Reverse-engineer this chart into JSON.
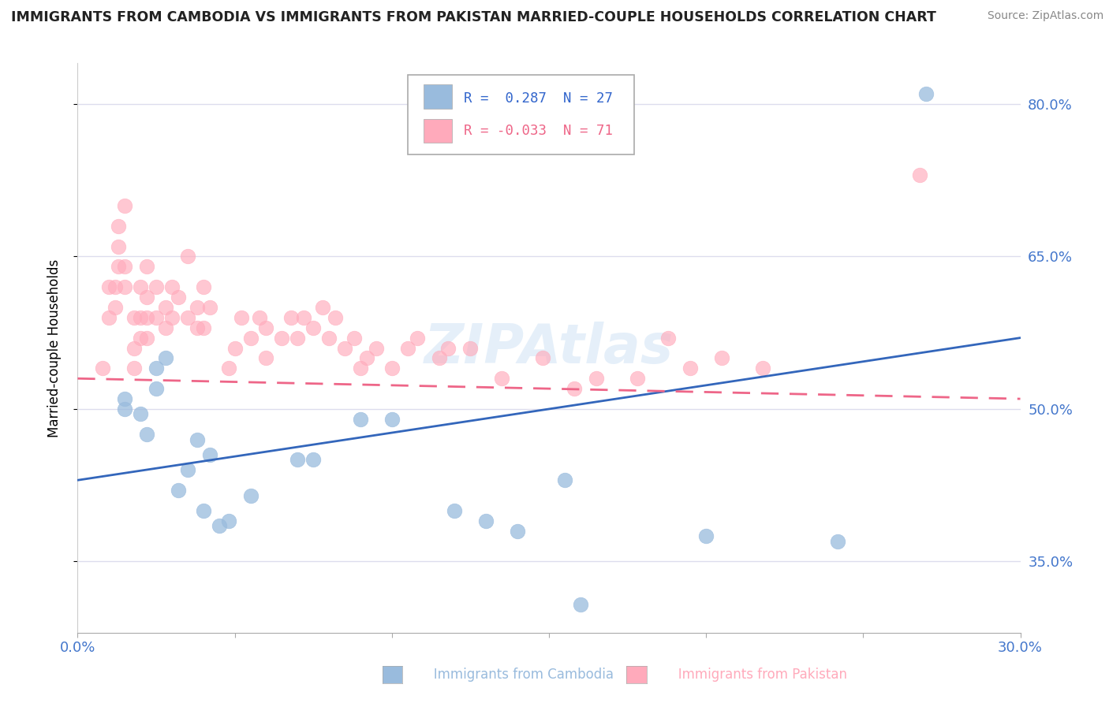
{
  "title": "IMMIGRANTS FROM CAMBODIA VS IMMIGRANTS FROM PAKISTAN MARRIED-COUPLE HOUSEHOLDS CORRELATION CHART",
  "source": "Source: ZipAtlas.com",
  "xlabel_cambodia": "Immigrants from Cambodia",
  "xlabel_pakistan": "Immigrants from Pakistan",
  "ylabel": "Married-couple Households",
  "xlim": [
    0.0,
    0.3
  ],
  "ylim": [
    0.28,
    0.84
  ],
  "yticks": [
    0.35,
    0.5,
    0.65,
    0.8
  ],
  "ytick_labels": [
    "35.0%",
    "50.0%",
    "65.0%",
    "80.0%"
  ],
  "cambodia_color": "#99bbdd",
  "pakistan_color": "#ffaabb",
  "cambodia_line_color": "#3366bb",
  "pakistan_line_color": "#ee6688",
  "background_color": "#ffffff",
  "grid_color": "#ddddee",
  "watermark": "ZIPAtlas",
  "cambodia_x": [
    0.015,
    0.015,
    0.02,
    0.022,
    0.025,
    0.025,
    0.028,
    0.032,
    0.035,
    0.038,
    0.04,
    0.042,
    0.045,
    0.048,
    0.055,
    0.07,
    0.075,
    0.09,
    0.1,
    0.12,
    0.13,
    0.14,
    0.155,
    0.16,
    0.2,
    0.242,
    0.27
  ],
  "cambodia_y": [
    0.5,
    0.51,
    0.495,
    0.475,
    0.52,
    0.54,
    0.55,
    0.42,
    0.44,
    0.47,
    0.4,
    0.455,
    0.385,
    0.39,
    0.415,
    0.45,
    0.45,
    0.49,
    0.49,
    0.4,
    0.39,
    0.38,
    0.43,
    0.308,
    0.375,
    0.37,
    0.81
  ],
  "pakistan_x": [
    0.008,
    0.01,
    0.01,
    0.012,
    0.012,
    0.013,
    0.013,
    0.013,
    0.015,
    0.015,
    0.015,
    0.018,
    0.018,
    0.018,
    0.02,
    0.02,
    0.02,
    0.022,
    0.022,
    0.022,
    0.022,
    0.025,
    0.025,
    0.028,
    0.028,
    0.03,
    0.03,
    0.032,
    0.035,
    0.035,
    0.038,
    0.038,
    0.04,
    0.04,
    0.042,
    0.048,
    0.05,
    0.052,
    0.055,
    0.058,
    0.06,
    0.06,
    0.065,
    0.068,
    0.07,
    0.072,
    0.075,
    0.078,
    0.08,
    0.082,
    0.085,
    0.088,
    0.09,
    0.092,
    0.095,
    0.1,
    0.105,
    0.108,
    0.115,
    0.118,
    0.125,
    0.135,
    0.148,
    0.158,
    0.165,
    0.178,
    0.188,
    0.195,
    0.205,
    0.218,
    0.268
  ],
  "pakistan_y": [
    0.54,
    0.59,
    0.62,
    0.6,
    0.62,
    0.64,
    0.66,
    0.68,
    0.62,
    0.64,
    0.7,
    0.54,
    0.56,
    0.59,
    0.57,
    0.59,
    0.62,
    0.57,
    0.59,
    0.61,
    0.64,
    0.59,
    0.62,
    0.58,
    0.6,
    0.59,
    0.62,
    0.61,
    0.59,
    0.65,
    0.58,
    0.6,
    0.58,
    0.62,
    0.6,
    0.54,
    0.56,
    0.59,
    0.57,
    0.59,
    0.55,
    0.58,
    0.57,
    0.59,
    0.57,
    0.59,
    0.58,
    0.6,
    0.57,
    0.59,
    0.56,
    0.57,
    0.54,
    0.55,
    0.56,
    0.54,
    0.56,
    0.57,
    0.55,
    0.56,
    0.56,
    0.53,
    0.55,
    0.52,
    0.53,
    0.53,
    0.57,
    0.54,
    0.55,
    0.54,
    0.73
  ]
}
